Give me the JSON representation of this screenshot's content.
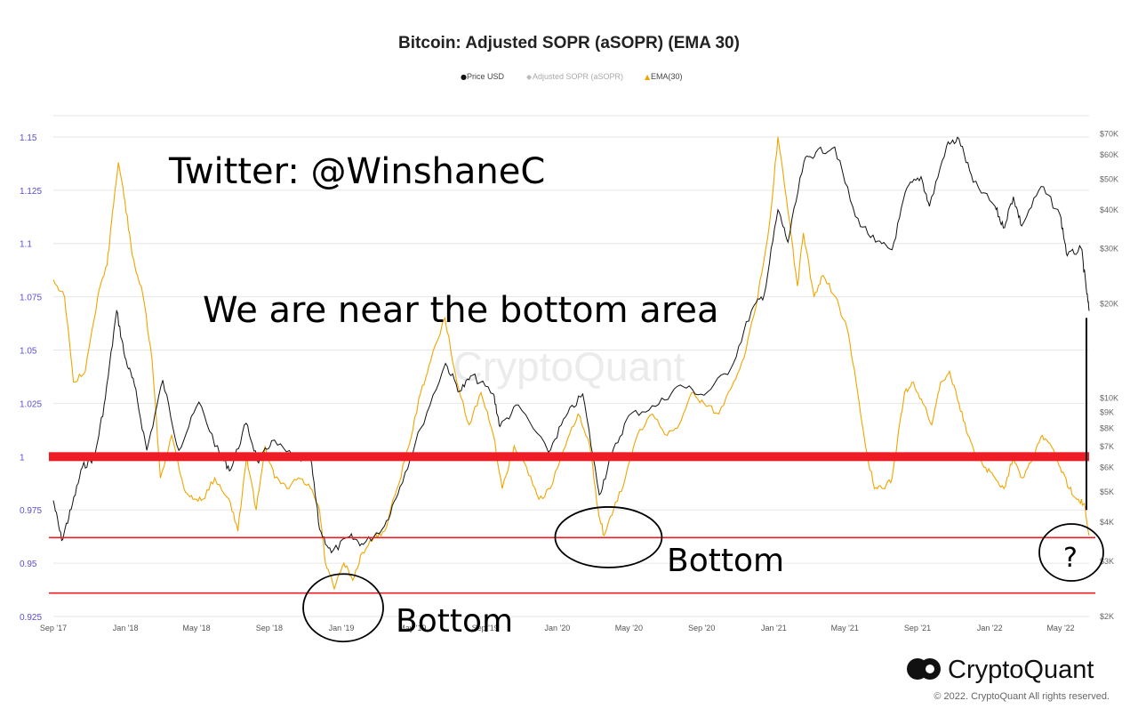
{
  "chart_data": {
    "type": "line",
    "title": "Bitcoin: Adjusted SOPR (aSOPR) (EMA 30)",
    "legend": [
      {
        "label": "Price USD",
        "marker": "●",
        "color": "#111111"
      },
      {
        "label": "Adjusted SOPR (aSOPR)",
        "marker": "◆",
        "color": "#bbbbbb"
      },
      {
        "label": "EMA(30)",
        "marker": "▲",
        "color": "#f0a500"
      }
    ],
    "legend_placement": "top-center",
    "grid": true,
    "x_range": [
      "2017-09-01",
      "2022-06-18"
    ],
    "x_ticks": [
      "Sep '17",
      "Jan '18",
      "May '18",
      "Sep '18",
      "Jan '19",
      "May '19",
      "Sep '19",
      "Jan '20",
      "May '20",
      "Sep '20",
      "Jan '21",
      "May '21",
      "Sep '21",
      "Jan '22",
      "May '22"
    ],
    "y_left": {
      "range": [
        0.925,
        1.16
      ],
      "ticks": [
        "0.925",
        "0.95",
        "0.975",
        "1",
        "1.025",
        "1.05",
        "1.075",
        "1.1",
        "1.125",
        "1.15"
      ]
    },
    "y_right": {
      "scale": "log",
      "range": [
        2000,
        80000
      ],
      "ticks": [
        {
          "label": "$2K",
          "value": 2000
        },
        {
          "label": "$3K",
          "value": 3000
        },
        {
          "label": "$4K",
          "value": 4000
        },
        {
          "label": "$5K",
          "value": 5000
        },
        {
          "label": "$6K",
          "value": 6000
        },
        {
          "label": "$7K",
          "value": 7000
        },
        {
          "label": "$8K",
          "value": 8000
        },
        {
          "label": "$9K",
          "value": 9000
        },
        {
          "label": "$10K",
          "value": 10000
        },
        {
          "label": "$20K",
          "value": 20000
        },
        {
          "label": "$30K",
          "value": 30000
        },
        {
          "label": "$40K",
          "value": 40000
        },
        {
          "label": "$50K",
          "value": 50000
        },
        {
          "label": "$60K",
          "value": 60000
        },
        {
          "label": "$70K",
          "value": 70000
        }
      ]
    },
    "series": [
      {
        "name": "Price USD",
        "axis": "right",
        "color": "#111111",
        "points": [
          [
            "2017-09-01",
            4700
          ],
          [
            "2017-09-15",
            3500
          ],
          [
            "2017-10-01",
            4400
          ],
          [
            "2017-10-20",
            6000
          ],
          [
            "2017-11-10",
            6500
          ],
          [
            "2017-11-28",
            10000
          ],
          [
            "2017-12-17",
            19000
          ],
          [
            "2017-12-31",
            13500
          ],
          [
            "2018-01-16",
            11000
          ],
          [
            "2018-02-06",
            6800
          ],
          [
            "2018-03-05",
            11400
          ],
          [
            "2018-04-01",
            6800
          ],
          [
            "2018-05-05",
            9700
          ],
          [
            "2018-06-10",
            6500
          ],
          [
            "2018-06-28",
            5900
          ],
          [
            "2018-07-24",
            8300
          ],
          [
            "2018-08-14",
            6200
          ],
          [
            "2018-09-05",
            7300
          ],
          [
            "2018-10-15",
            6400
          ],
          [
            "2018-11-10",
            6400
          ],
          [
            "2018-11-25",
            3800
          ],
          [
            "2018-12-15",
            3200
          ],
          [
            "2019-01-15",
            3600
          ],
          [
            "2019-02-07",
            3400
          ],
          [
            "2019-03-15",
            3900
          ],
          [
            "2019-04-10",
            5200
          ],
          [
            "2019-05-15",
            8000
          ],
          [
            "2019-06-26",
            12900
          ],
          [
            "2019-07-20",
            10500
          ],
          [
            "2019-08-10",
            11800
          ],
          [
            "2019-09-15",
            10300
          ],
          [
            "2019-09-26",
            8100
          ],
          [
            "2019-10-27",
            9500
          ],
          [
            "2019-12-17",
            6700
          ],
          [
            "2020-01-15",
            8700
          ],
          [
            "2020-02-13",
            10300
          ],
          [
            "2020-03-12",
            4900
          ],
          [
            "2020-04-01",
            6500
          ],
          [
            "2020-05-01",
            8800
          ],
          [
            "2020-06-15",
            9400
          ],
          [
            "2020-07-27",
            11000
          ],
          [
            "2020-09-05",
            10200
          ],
          [
            "2020-10-21",
            12500
          ],
          [
            "2020-11-24",
            19000
          ],
          [
            "2020-12-16",
            21500
          ],
          [
            "2021-01-08",
            40000
          ],
          [
            "2021-01-25",
            31500
          ],
          [
            "2021-02-21",
            57000
          ],
          [
            "2021-03-13",
            61000
          ],
          [
            "2021-04-14",
            63500
          ],
          [
            "2021-05-19",
            38000
          ],
          [
            "2021-06-22",
            31500
          ],
          [
            "2021-07-20",
            29800
          ],
          [
            "2021-08-14",
            47000
          ],
          [
            "2021-09-07",
            51000
          ],
          [
            "2021-09-21",
            41000
          ],
          [
            "2021-10-20",
            64000
          ],
          [
            "2021-11-10",
            67500
          ],
          [
            "2021-12-04",
            49000
          ],
          [
            "2022-01-10",
            41000
          ],
          [
            "2022-01-24",
            35000
          ],
          [
            "2022-02-10",
            44000
          ],
          [
            "2022-02-24",
            35500
          ],
          [
            "2022-03-29",
            47500
          ],
          [
            "2022-04-30",
            38500
          ],
          [
            "2022-05-12",
            28500
          ],
          [
            "2022-06-05",
            30000
          ],
          [
            "2022-06-13",
            22500
          ],
          [
            "2022-06-18",
            19000
          ]
        ]
      },
      {
        "name": "EMA(30)",
        "axis": "left",
        "color": "#f0a500",
        "points": [
          [
            "2017-09-01",
            1.083
          ],
          [
            "2017-09-20",
            1.075
          ],
          [
            "2017-10-05",
            1.035
          ],
          [
            "2017-10-25",
            1.04
          ],
          [
            "2017-11-15",
            1.075
          ],
          [
            "2017-12-01",
            1.09
          ],
          [
            "2017-12-10",
            1.115
          ],
          [
            "2017-12-20",
            1.138
          ],
          [
            "2017-12-31",
            1.12
          ],
          [
            "2018-01-12",
            1.095
          ],
          [
            "2018-01-31",
            1.075
          ],
          [
            "2018-02-15",
            1.045
          ],
          [
            "2018-03-01",
            0.99
          ],
          [
            "2018-03-20",
            1.01
          ],
          [
            "2018-04-10",
            0.985
          ],
          [
            "2018-04-25",
            0.98
          ],
          [
            "2018-05-12",
            0.98
          ],
          [
            "2018-06-01",
            0.99
          ],
          [
            "2018-06-25",
            0.98
          ],
          [
            "2018-07-10",
            0.965
          ],
          [
            "2018-07-25",
            1.0
          ],
          [
            "2018-08-10",
            0.975
          ],
          [
            "2018-08-25",
            1.005
          ],
          [
            "2018-09-10",
            0.99
          ],
          [
            "2018-10-01",
            0.985
          ],
          [
            "2018-10-20",
            0.99
          ],
          [
            "2018-11-10",
            0.985
          ],
          [
            "2018-11-25",
            0.975
          ],
          [
            "2018-12-05",
            0.95
          ],
          [
            "2018-12-20",
            0.938
          ],
          [
            "2019-01-05",
            0.95
          ],
          [
            "2019-01-20",
            0.942
          ],
          [
            "2019-02-05",
            0.955
          ],
          [
            "2019-02-25",
            0.962
          ],
          [
            "2019-03-15",
            0.965
          ],
          [
            "2019-04-05",
            0.985
          ],
          [
            "2019-04-25",
            1.005
          ],
          [
            "2019-05-15",
            1.03
          ],
          [
            "2019-06-01",
            1.045
          ],
          [
            "2019-06-25",
            1.065
          ],
          [
            "2019-07-15",
            1.035
          ],
          [
            "2019-08-05",
            1.015
          ],
          [
            "2019-08-25",
            1.03
          ],
          [
            "2019-09-15",
            1.01
          ],
          [
            "2019-09-30",
            0.985
          ],
          [
            "2019-10-20",
            1.005
          ],
          [
            "2019-11-10",
            0.995
          ],
          [
            "2019-12-01",
            0.98
          ],
          [
            "2019-12-20",
            0.985
          ],
          [
            "2020-01-15",
            1.005
          ],
          [
            "2020-02-05",
            1.02
          ],
          [
            "2020-02-25",
            1.005
          ],
          [
            "2020-03-10",
            0.975
          ],
          [
            "2020-03-20",
            0.963
          ],
          [
            "2020-04-05",
            0.975
          ],
          [
            "2020-04-25",
            0.99
          ],
          [
            "2020-05-15",
            1.01
          ],
          [
            "2020-06-10",
            1.02
          ],
          [
            "2020-07-05",
            1.01
          ],
          [
            "2020-07-25",
            1.015
          ],
          [
            "2020-08-15",
            1.03
          ],
          [
            "2020-09-05",
            1.025
          ],
          [
            "2020-09-30",
            1.02
          ],
          [
            "2020-10-25",
            1.035
          ],
          [
            "2020-11-15",
            1.05
          ],
          [
            "2020-12-05",
            1.075
          ],
          [
            "2020-12-25",
            1.11
          ],
          [
            "2021-01-08",
            1.15
          ],
          [
            "2021-01-25",
            1.115
          ],
          [
            "2021-02-10",
            1.08
          ],
          [
            "2021-02-20",
            1.105
          ],
          [
            "2021-03-10",
            1.075
          ],
          [
            "2021-03-25",
            1.085
          ],
          [
            "2021-04-15",
            1.075
          ],
          [
            "2021-05-05",
            1.06
          ],
          [
            "2021-05-20",
            1.035
          ],
          [
            "2021-06-05",
            1.005
          ],
          [
            "2021-06-20",
            0.985
          ],
          [
            "2021-07-05",
            0.985
          ],
          [
            "2021-07-20",
            0.99
          ],
          [
            "2021-08-10",
            1.03
          ],
          [
            "2021-08-25",
            1.035
          ],
          [
            "2021-09-10",
            1.025
          ],
          [
            "2021-09-25",
            1.015
          ],
          [
            "2021-10-10",
            1.035
          ],
          [
            "2021-10-25",
            1.04
          ],
          [
            "2021-11-10",
            1.025
          ],
          [
            "2021-11-25",
            1.01
          ],
          [
            "2021-12-10",
            1.0
          ],
          [
            "2021-12-25",
            0.995
          ],
          [
            "2022-01-10",
            0.99
          ],
          [
            "2022-01-25",
            0.985
          ],
          [
            "2022-02-10",
            1.0
          ],
          [
            "2022-02-25",
            0.99
          ],
          [
            "2022-03-15",
            1.0
          ],
          [
            "2022-03-31",
            1.01
          ],
          [
            "2022-04-15",
            1.005
          ],
          [
            "2022-04-30",
            0.995
          ],
          [
            "2022-05-15",
            0.985
          ],
          [
            "2022-05-31",
            0.98
          ],
          [
            "2022-06-10",
            0.978
          ],
          [
            "2022-06-18",
            0.963
          ]
        ]
      }
    ],
    "reference_lines": [
      {
        "value": 1.0,
        "color": "#ee1c25",
        "style": "thick"
      },
      {
        "value": 0.962,
        "color": "#ee1c25",
        "style": "thin"
      },
      {
        "value": 0.936,
        "color": "#ee1c25",
        "style": "thin"
      }
    ],
    "annotations": {
      "twitter": "Twitter: @WinshaneC",
      "headline": "We are near the bottom area",
      "bottom_1": "Bottom",
      "bottom_2": "Bottom",
      "question": "?",
      "circles": [
        {
          "x": "2018-12-20",
          "y": 0.937
        },
        {
          "x": "2020-03-20",
          "y": 0.963
        },
        {
          "x": "2022-06-18",
          "y": 0.96
        }
      ]
    }
  },
  "branding": {
    "watermark": "CryptoQuant",
    "logo": "CryptoQuant",
    "copyright": "© 2022. CryptoQuant All rights reserved."
  }
}
